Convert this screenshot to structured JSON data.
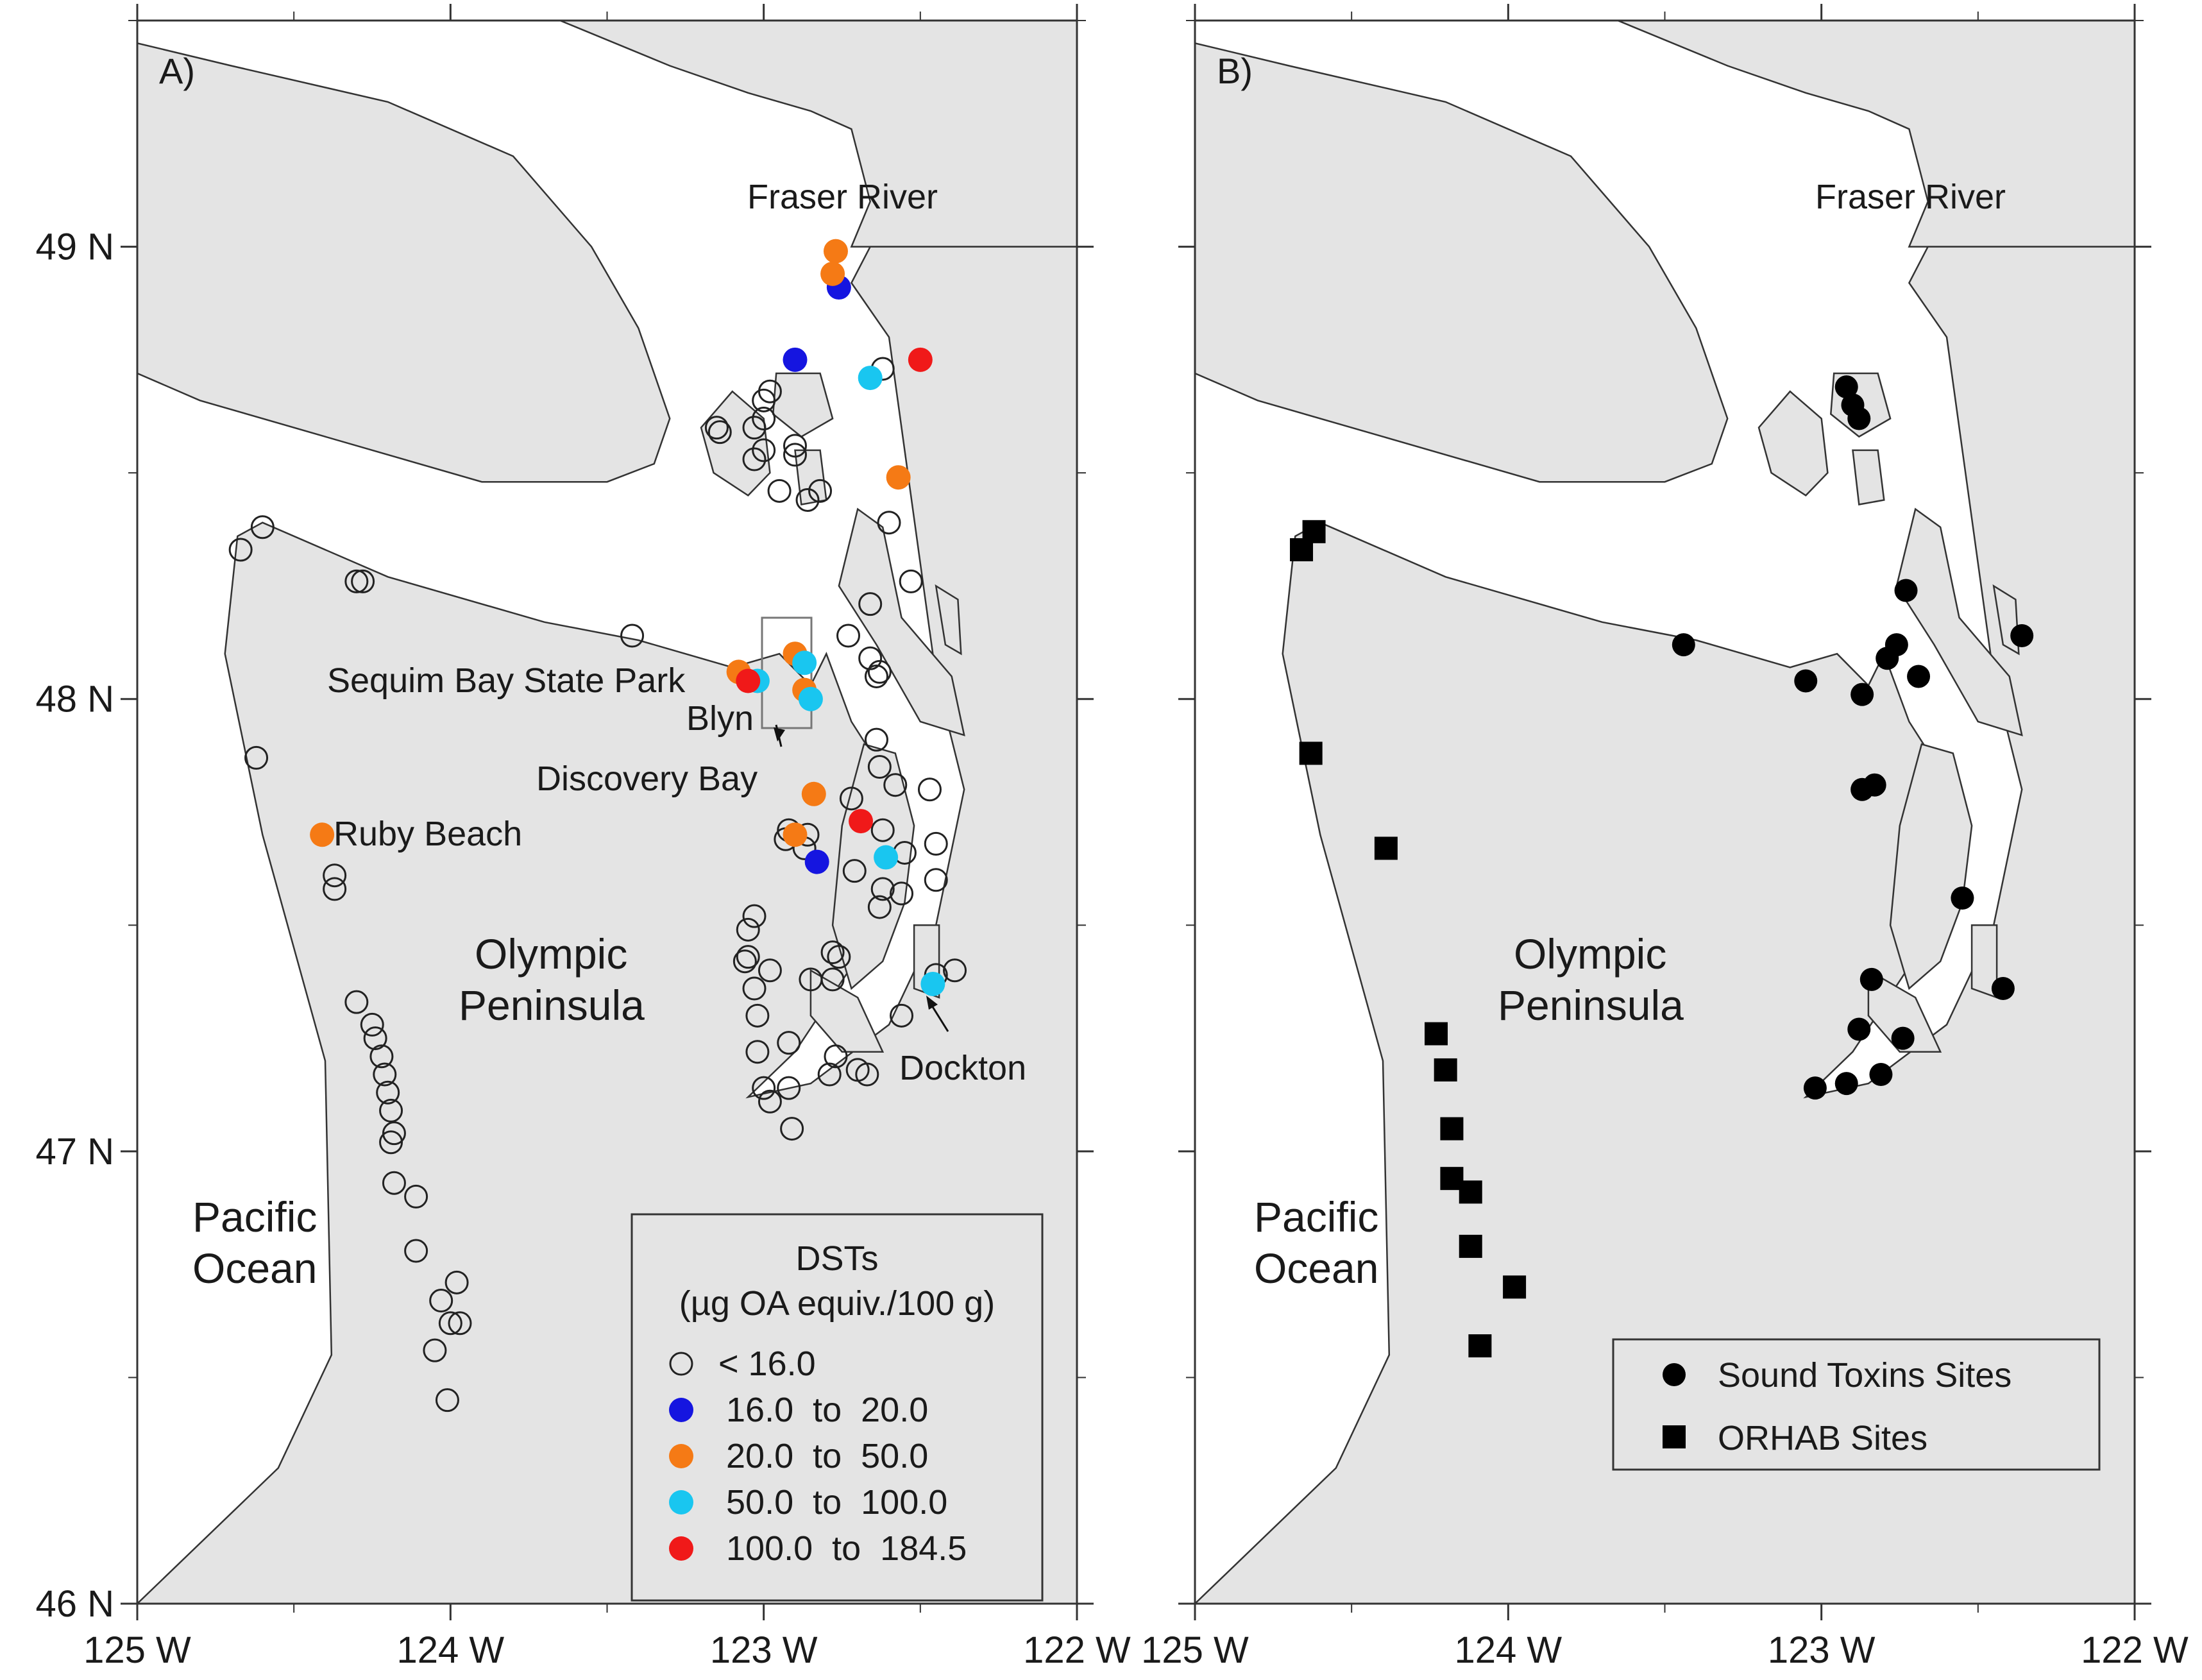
{
  "colors": {
    "land": "#e4e4e4",
    "water": "#ffffff",
    "coast": "#333333",
    "class_lt16": "none",
    "class_16_20": "#1515e0",
    "class_20_50": "#f57a15",
    "class_50_100": "#19c6f0",
    "class_100_184": "#f01919",
    "sites": "#000000"
  },
  "axes": {
    "x_ticks": [
      {
        "lon": -125,
        "label": "125 W"
      },
      {
        "lon": -124,
        "label": "124 W"
      },
      {
        "lon": -123,
        "label": "123 W"
      },
      {
        "lon": -122,
        "label": "122 W"
      }
    ],
    "y_ticks": [
      {
        "lat": 49,
        "label": "49 N"
      },
      {
        "lat": 48,
        "label": "48 N"
      },
      {
        "lat": 47,
        "label": "47 N"
      },
      {
        "lat": 46,
        "label": "46 N"
      }
    ],
    "lon_range": [
      -125,
      -122
    ],
    "lat_range": [
      46,
      49.5
    ],
    "minor_ticks_lat": [
      46.5,
      47.5,
      48.5,
      49.5
    ],
    "minor_ticks_lon": [
      -124.5,
      -123.5,
      -122.5
    ]
  },
  "panel_a": {
    "label": "A)",
    "places": {
      "fraser": "Fraser River",
      "sequim": "Sequim Bay State Park",
      "blyn": "Blyn",
      "discovery": "Discovery Bay",
      "ruby": "Ruby Beach",
      "olympic_1": "Olympic",
      "olympic_2": "Peninsula",
      "dockton": "Dockton",
      "pacific_1": "Pacific",
      "pacific_2": "Ocean"
    },
    "legend": {
      "title_1": "DSTs",
      "title_2": "(µg OA equiv./100 g)",
      "items": [
        {
          "label": "< 16.0",
          "cls": "lt16"
        },
        {
          "label": "16.0  to  20.0",
          "cls": "b16"
        },
        {
          "label": "20.0  to  50.0",
          "cls": "b20"
        },
        {
          "label": "50.0  to  100.0",
          "cls": "b50"
        },
        {
          "label": "100.0  to  184.5",
          "cls": "b100"
        }
      ]
    }
  },
  "panel_b": {
    "label": "B)",
    "places": {
      "fraser": "Fraser River",
      "olympic_1": "Olympic",
      "olympic_2": "Peninsula",
      "pacific_1": "Pacific",
      "pacific_2": "Ocean"
    },
    "legend": {
      "items": [
        {
          "label": "Sound Toxins Sites",
          "marker": "circle"
        },
        {
          "label": "ORHAB Sites",
          "marker": "square"
        }
      ]
    }
  },
  "chart_data": [
    {
      "type": "scatter",
      "title": "",
      "xlabel": "",
      "ylabel": "",
      "xlim": [
        -125,
        -122
      ],
      "ylim": [
        46,
        49.5
      ],
      "series": [
        {
          "name": "< 16.0",
          "points": [
            [
              -124.67,
              48.33
            ],
            [
              -124.6,
              48.38
            ],
            [
              -124.3,
              48.26
            ],
            [
              -124.28,
              48.26
            ],
            [
              -123.42,
              48.14
            ],
            [
              -124.62,
              47.87
            ],
            [
              -124.37,
              47.61
            ],
            [
              -124.37,
              47.58
            ],
            [
              -124.3,
              47.33
            ],
            [
              -124.25,
              47.28
            ],
            [
              -124.24,
              47.25
            ],
            [
              -124.22,
              47.21
            ],
            [
              -124.21,
              47.17
            ],
            [
              -124.2,
              47.13
            ],
            [
              -124.19,
              47.09
            ],
            [
              -124.18,
              47.04
            ],
            [
              -124.19,
              47.02
            ],
            [
              -124.18,
              46.93
            ],
            [
              -124.11,
              46.9
            ],
            [
              -124.11,
              46.78
            ],
            [
              -124.03,
              46.67
            ],
            [
              -123.98,
              46.71
            ],
            [
              -124.0,
              46.62
            ],
            [
              -123.97,
              46.62
            ],
            [
              -124.05,
              46.56
            ],
            [
              -124.01,
              46.45
            ],
            [
              -122.98,
              48.68
            ],
            [
              -123.0,
              48.66
            ],
            [
              -123.0,
              48.62
            ],
            [
              -123.03,
              48.6
            ],
            [
              -123.15,
              48.6
            ],
            [
              -123.14,
              48.59
            ],
            [
              -123.0,
              48.55
            ],
            [
              -122.9,
              48.56
            ],
            [
              -123.03,
              48.53
            ],
            [
              -122.9,
              48.54
            ],
            [
              -122.95,
              48.46
            ],
            [
              -122.82,
              48.46
            ],
            [
              -122.86,
              48.44
            ],
            [
              -122.62,
              48.73
            ],
            [
              -122.6,
              48.39
            ],
            [
              -122.53,
              48.26
            ],
            [
              -122.66,
              48.21
            ],
            [
              -122.73,
              48.14
            ],
            [
              -122.66,
              48.09
            ],
            [
              -122.64,
              48.05
            ],
            [
              -122.63,
              48.06
            ],
            [
              -122.64,
              47.91
            ],
            [
              -122.63,
              47.85
            ],
            [
              -122.58,
              47.81
            ],
            [
              -122.47,
              47.8
            ],
            [
              -122.72,
              47.78
            ],
            [
              -122.62,
              47.71
            ],
            [
              -122.45,
              47.68
            ],
            [
              -122.55,
              47.66
            ],
            [
              -122.45,
              47.6
            ],
            [
              -122.56,
              47.57
            ],
            [
              -122.62,
              47.58
            ],
            [
              -122.63,
              47.54
            ],
            [
              -122.71,
              47.62
            ],
            [
              -122.39,
              47.4
            ],
            [
              -122.45,
              47.39
            ],
            [
              -122.78,
              47.44
            ],
            [
              -122.76,
              47.43
            ],
            [
              -122.78,
              47.38
            ],
            [
              -122.85,
              47.38
            ],
            [
              -122.98,
              47.4
            ],
            [
              -123.03,
              47.52
            ],
            [
              -123.05,
              47.49
            ],
            [
              -123.05,
              47.43
            ],
            [
              -123.06,
              47.42
            ],
            [
              -123.03,
              47.36
            ],
            [
              -123.02,
              47.3
            ],
            [
              -122.92,
              47.24
            ],
            [
              -122.77,
              47.21
            ],
            [
              -122.7,
              47.18
            ],
            [
              -122.79,
              47.17
            ],
            [
              -123.0,
              47.14
            ],
            [
              -122.92,
              47.14
            ],
            [
              -122.67,
              47.17
            ],
            [
              -122.56,
              47.3
            ],
            [
              -122.87,
              47.67
            ],
            [
              -122.86,
              47.7
            ],
            [
              -122.93,
              47.69
            ],
            [
              -122.92,
              47.71
            ],
            [
              -123.02,
              47.22
            ],
            [
              -122.98,
              47.11
            ],
            [
              -122.91,
              47.05
            ]
          ]
        },
        {
          "name": "16.0 to 20.0",
          "points": [
            [
              -122.9,
              48.75
            ],
            [
              -122.76,
              48.91
            ],
            [
              -122.83,
              47.64
            ]
          ]
        },
        {
          "name": "20.0 to 50.0",
          "points": [
            [
              -122.77,
              48.99
            ],
            [
              -122.78,
              48.94
            ],
            [
              -122.57,
              48.49
            ],
            [
              -123.08,
              48.06
            ],
            [
              -122.9,
              48.1
            ],
            [
              -122.87,
              48.02
            ],
            [
              -124.41,
              47.7
            ],
            [
              -122.84,
              47.79
            ],
            [
              -122.9,
              47.7
            ]
          ]
        },
        {
          "name": "50.0 to 100.0",
          "points": [
            [
              -122.66,
              48.71
            ],
            [
              -123.02,
              48.04
            ],
            [
              -122.87,
              48.08
            ],
            [
              -122.85,
              48.0
            ],
            [
              -122.61,
              47.65
            ],
            [
              -122.46,
              47.37
            ]
          ]
        },
        {
          "name": "100.0 to 184.5",
          "points": [
            [
              -122.5,
              48.75
            ],
            [
              -123.05,
              48.04
            ],
            [
              -122.69,
              47.73
            ]
          ]
        }
      ]
    },
    {
      "type": "scatter",
      "title": "",
      "xlabel": "",
      "ylabel": "",
      "xlim": [
        -125,
        -122
      ],
      "ylim": [
        46,
        49.5
      ],
      "series": [
        {
          "name": "Sound Toxins Sites",
          "points": [
            [
              -122.92,
              48.69
            ],
            [
              -122.9,
              48.65
            ],
            [
              -122.88,
              48.62
            ],
            [
              -122.73,
              48.24
            ],
            [
              -122.36,
              48.14
            ],
            [
              -122.76,
              48.12
            ],
            [
              -122.79,
              48.09
            ],
            [
              -122.69,
              48.05
            ],
            [
              -123.44,
              48.12
            ],
            [
              -123.05,
              48.04
            ],
            [
              -122.87,
              48.01
            ],
            [
              -122.87,
              47.8
            ],
            [
              -122.83,
              47.81
            ],
            [
              -122.55,
              47.56
            ],
            [
              -122.42,
              47.36
            ],
            [
              -122.84,
              47.38
            ],
            [
              -122.88,
              47.27
            ],
            [
              -122.74,
              47.25
            ],
            [
              -122.81,
              47.17
            ],
            [
              -122.92,
              47.15
            ],
            [
              -123.02,
              47.14
            ]
          ]
        },
        {
          "name": "ORHAB Sites",
          "points": [
            [
              -124.62,
              48.37
            ],
            [
              -124.66,
              48.33
            ],
            [
              -124.63,
              47.88
            ],
            [
              -124.39,
              47.67
            ],
            [
              -124.23,
              47.26
            ],
            [
              -124.2,
              47.18
            ],
            [
              -124.18,
              47.05
            ],
            [
              -124.18,
              46.94
            ],
            [
              -124.12,
              46.91
            ],
            [
              -124.12,
              46.79
            ],
            [
              -123.98,
              46.7
            ],
            [
              -124.09,
              46.57
            ]
          ]
        }
      ]
    }
  ]
}
